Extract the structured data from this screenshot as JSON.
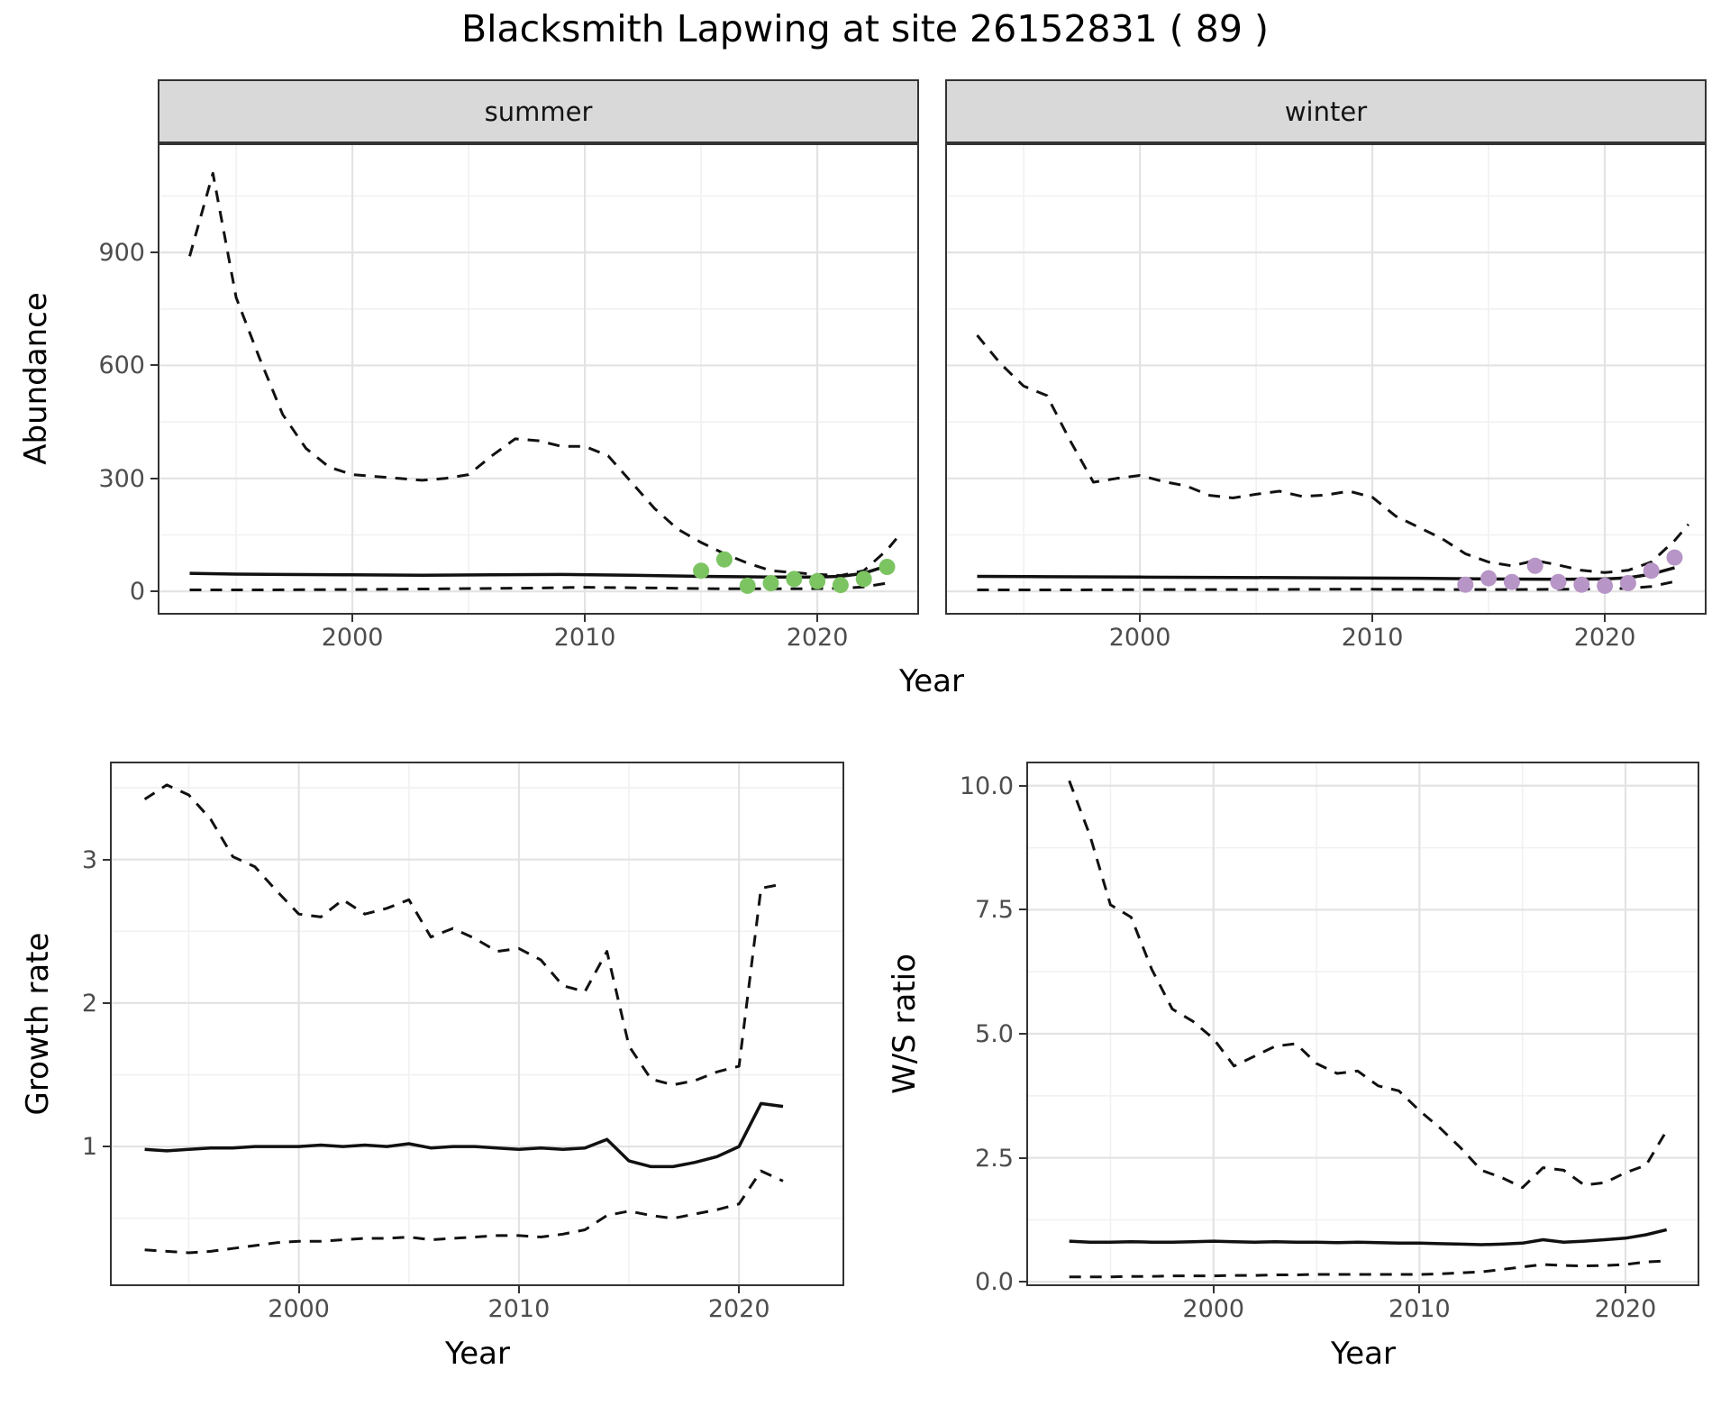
{
  "title": "Blacksmith Lapwing at site 26152831 ( 89 )",
  "colors": {
    "line": "#111111",
    "grid_major": "#E3E3E3",
    "grid_minor": "#F1F1F1",
    "strip_bg": "#D9D9D9",
    "panel_border": "#333333",
    "tick_text": "#4D4D4D",
    "summer_points": "#7CC462",
    "winter_points": "#B795C6"
  },
  "chart_data": [
    {
      "id": "abundance_by_season",
      "type": "line",
      "title": "Blacksmith Lapwing at site 26152831 ( 89 )",
      "ylabel": "Abundance",
      "xlabel": "Year",
      "xlim": [
        1991.7,
        2024.3
      ],
      "ylim": [
        -57,
        1185
      ],
      "xticks": [
        2000,
        2010,
        2020
      ],
      "xtick_labels": [
        "2000",
        "2010",
        "2020"
      ],
      "yticks": [
        0,
        300,
        600,
        900
      ],
      "ytick_labels": [
        "0",
        "300",
        "600",
        "900"
      ],
      "x_minor": [
        1995,
        2005,
        2015
      ],
      "y_minor": [
        150,
        450,
        750,
        1050
      ],
      "grid": true,
      "legend": "none",
      "facets": [
        {
          "label": "summer",
          "series": [
            {
              "name": "upper-credible",
              "style": "dashed",
              "x": [
                1993,
                1994,
                1995,
                1996,
                1997,
                1998,
                1999,
                2000,
                2001,
                2002,
                2003,
                2004,
                2005,
                2006,
                2007,
                2008,
                2009,
                2010,
                2011,
                2012,
                2013,
                2014,
                2015,
                2016,
                2017,
                2018,
                2019,
                2020,
                2021,
                2022,
                2023,
                2023.4
              ],
              "y": [
                890,
                1110,
                780,
                620,
                470,
                380,
                330,
                310,
                305,
                300,
                295,
                300,
                310,
                360,
                405,
                400,
                385,
                385,
                360,
                290,
                220,
                165,
                130,
                100,
                75,
                55,
                50,
                45,
                42,
                55,
                110,
                140
              ]
            },
            {
              "name": "median",
              "style": "solid",
              "x": [
                1993,
                1995,
                1997,
                2000,
                2003,
                2006,
                2009,
                2012,
                2015,
                2018,
                2020,
                2021,
                2022,
                2023
              ],
              "y": [
                48,
                46,
                45,
                44,
                43,
                44,
                45,
                43,
                40,
                38,
                38,
                40,
                48,
                68
              ]
            },
            {
              "name": "lower-credible",
              "style": "dashed",
              "x": [
                1993,
                1996,
                2000,
                2004,
                2008,
                2010,
                2013,
                2016,
                2019,
                2021,
                2022,
                2023
              ],
              "y": [
                4,
                4,
                5,
                7,
                9,
                11,
                9,
                7,
                7,
                8,
                12,
                22
              ]
            }
          ],
          "points": {
            "name": "summer-observed",
            "color": "#7CC462",
            "x": [
              2015,
              2016,
              2017,
              2018,
              2019,
              2020,
              2021,
              2022,
              2023
            ],
            "y": [
              55,
              85,
              15,
              22,
              33,
              27,
              17,
              33,
              65
            ]
          }
        },
        {
          "label": "winter",
          "series": [
            {
              "name": "upper-credible",
              "style": "dashed",
              "x": [
                1993,
                1994,
                1995,
                1996,
                1997,
                1998,
                1999,
                2000,
                2001,
                2002,
                2003,
                2004,
                2005,
                2006,
                2007,
                2008,
                2009,
                2010,
                2011,
                2012,
                2013,
                2014,
                2015,
                2016,
                2017,
                2018,
                2019,
                2020,
                2021,
                2022,
                2023,
                2023.6
              ],
              "y": [
                680,
                605,
                545,
                520,
                400,
                290,
                300,
                308,
                292,
                280,
                255,
                248,
                258,
                266,
                252,
                256,
                266,
                250,
                200,
                170,
                140,
                100,
                78,
                68,
                82,
                70,
                56,
                50,
                56,
                78,
                135,
                178
              ]
            },
            {
              "name": "median",
              "style": "solid",
              "x": [
                1993,
                1996,
                2000,
                2004,
                2008,
                2012,
                2015,
                2018,
                2020,
                2021,
                2022,
                2023
              ],
              "y": [
                40,
                39,
                38,
                37,
                36,
                35,
                33,
                32,
                33,
                36,
                46,
                63
              ]
            },
            {
              "name": "lower-credible",
              "style": "dashed",
              "x": [
                1993,
                1997,
                2001,
                2005,
                2009,
                2013,
                2016,
                2019,
                2021,
                2022,
                2023
              ],
              "y": [
                4,
                4,
                5,
                5,
                6,
                5,
                5,
                6,
                8,
                13,
                26
              ]
            }
          ],
          "points": {
            "name": "winter-observed",
            "color": "#B795C6",
            "x": [
              2014,
              2015,
              2016,
              2017,
              2018,
              2019,
              2020,
              2021,
              2022,
              2023
            ],
            "y": [
              18,
              35,
              25,
              68,
              25,
              18,
              15,
              22,
              55,
              90
            ]
          }
        }
      ]
    },
    {
      "id": "growth_rate",
      "type": "line",
      "ylabel": "Growth rate",
      "xlabel": "Year",
      "xlim": [
        1991.5,
        2024.7
      ],
      "ylim": [
        0.04,
        3.67
      ],
      "xticks": [
        2000,
        2010,
        2020
      ],
      "xtick_labels": [
        "2000",
        "2010",
        "2020"
      ],
      "yticks": [
        1,
        2,
        3
      ],
      "ytick_labels": [
        "1",
        "2",
        "3"
      ],
      "x_minor": [
        1995,
        2005,
        2015
      ],
      "y_minor": [
        0.5,
        1.5,
        2.5,
        3.5
      ],
      "grid": true,
      "legend": "none",
      "x": [
        1993,
        1994,
        1995,
        1996,
        1997,
        1998,
        1999,
        2000,
        2001,
        2002,
        2003,
        2004,
        2005,
        2006,
        2007,
        2008,
        2009,
        2010,
        2011,
        2012,
        2013,
        2014,
        2015,
        2016,
        2017,
        2018,
        2019,
        2020,
        2021,
        2022
      ],
      "series": [
        {
          "name": "upper-credible",
          "style": "dashed",
          "y": [
            3.42,
            3.52,
            3.45,
            3.28,
            3.02,
            2.95,
            2.78,
            2.62,
            2.6,
            2.72,
            2.62,
            2.66,
            2.72,
            2.46,
            2.52,
            2.45,
            2.36,
            2.38,
            2.3,
            2.12,
            2.08,
            2.36,
            1.7,
            1.47,
            1.43,
            1.46,
            1.52,
            1.56,
            2.8,
            2.83
          ]
        },
        {
          "name": "median",
          "style": "solid",
          "y": [
            0.98,
            0.97,
            0.98,
            0.99,
            0.99,
            1.0,
            1.0,
            1.0,
            1.01,
            1.0,
            1.01,
            1.0,
            1.02,
            0.99,
            1.0,
            1.0,
            0.99,
            0.98,
            0.99,
            0.98,
            0.99,
            1.05,
            0.9,
            0.86,
            0.86,
            0.89,
            0.93,
            1.0,
            1.3,
            1.28
          ]
        },
        {
          "name": "lower-credible",
          "style": "dashed",
          "y": [
            0.28,
            0.27,
            0.26,
            0.27,
            0.29,
            0.31,
            0.33,
            0.34,
            0.34,
            0.35,
            0.36,
            0.36,
            0.37,
            0.35,
            0.36,
            0.37,
            0.38,
            0.38,
            0.37,
            0.39,
            0.42,
            0.52,
            0.55,
            0.52,
            0.5,
            0.53,
            0.56,
            0.6,
            0.83,
            0.76
          ]
        }
      ]
    },
    {
      "id": "winter_summer_ratio",
      "type": "line",
      "ylabel": "W/S ratio",
      "xlabel": "Year",
      "xlim": [
        1991.0,
        2023.5
      ],
      "ylim": [
        -0.05,
        10.45
      ],
      "xticks": [
        2000,
        2010,
        2020
      ],
      "xtick_labels": [
        "2000",
        "2010",
        "2020"
      ],
      "yticks": [
        0.0,
        2.5,
        5.0,
        7.5,
        10.0
      ],
      "ytick_labels": [
        "0.0",
        "2.5",
        "5.0",
        "7.5",
        "10.0"
      ],
      "x_minor": [
        1995,
        2005,
        2015
      ],
      "y_minor": [
        1.25,
        3.75,
        6.25,
        8.75
      ],
      "grid": true,
      "legend": "none",
      "x": [
        1993,
        1994,
        1995,
        1996,
        1997,
        1998,
        1999,
        2000,
        2001,
        2002,
        2003,
        2004,
        2005,
        2006,
        2007,
        2008,
        2009,
        2010,
        2011,
        2012,
        2013,
        2014,
        2015,
        2016,
        2017,
        2018,
        2019,
        2020,
        2021,
        2022
      ],
      "series": [
        {
          "name": "upper-credible",
          "style": "dashed",
          "y": [
            10.1,
            9.0,
            7.6,
            7.35,
            6.3,
            5.5,
            5.25,
            4.9,
            4.35,
            4.55,
            4.75,
            4.8,
            4.4,
            4.2,
            4.25,
            3.95,
            3.85,
            3.45,
            3.1,
            2.7,
            2.25,
            2.1,
            1.9,
            2.3,
            2.25,
            1.95,
            2.0,
            2.2,
            2.35,
            3.05
          ]
        },
        {
          "name": "median",
          "style": "solid",
          "y": [
            0.82,
            0.8,
            0.8,
            0.81,
            0.8,
            0.8,
            0.81,
            0.82,
            0.81,
            0.8,
            0.81,
            0.8,
            0.8,
            0.79,
            0.8,
            0.79,
            0.78,
            0.78,
            0.77,
            0.76,
            0.75,
            0.76,
            0.78,
            0.85,
            0.8,
            0.82,
            0.85,
            0.88,
            0.95,
            1.05
          ]
        },
        {
          "name": "lower-credible",
          "style": "dashed",
          "y": [
            0.1,
            0.1,
            0.1,
            0.11,
            0.11,
            0.12,
            0.12,
            0.12,
            0.13,
            0.13,
            0.14,
            0.14,
            0.15,
            0.15,
            0.15,
            0.15,
            0.15,
            0.15,
            0.16,
            0.18,
            0.2,
            0.25,
            0.3,
            0.35,
            0.33,
            0.32,
            0.33,
            0.35,
            0.4,
            0.42
          ]
        }
      ]
    }
  ]
}
